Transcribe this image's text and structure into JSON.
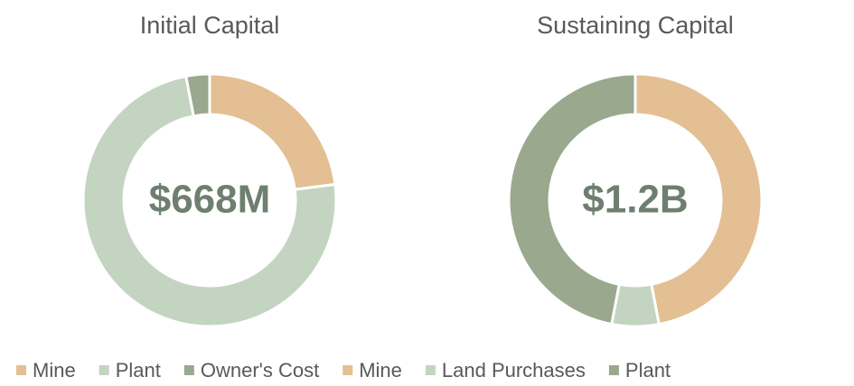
{
  "chart_data": [
    {
      "type": "pie",
      "donut": true,
      "title": "Initial  Capital",
      "center_label": "$668M",
      "categories": [
        "Mine",
        "Plant",
        "Owner's Cost"
      ],
      "values": [
        23,
        74,
        3
      ],
      "colors": [
        "#e3bf93",
        "#c3d5c1",
        "#9aa88e"
      ]
    },
    {
      "type": "pie",
      "donut": true,
      "title": "Sustaining Capital",
      "center_label": "$1.2B",
      "categories": [
        "Mine",
        "Land Purchases",
        "Plant"
      ],
      "values": [
        47,
        6,
        47
      ],
      "colors": [
        "#e3bf93",
        "#c3d5c1",
        "#9aa88e"
      ]
    }
  ]
}
